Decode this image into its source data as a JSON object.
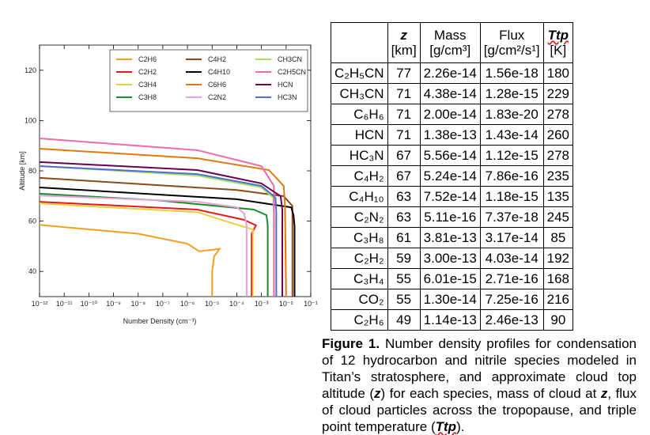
{
  "chart_data": {
    "type": "line",
    "xlabel": "Number Density (cm⁻³)",
    "ylabel": "Altitude [km]",
    "xscale": "log",
    "xlim": [
      1e-12,
      0.1
    ],
    "ylim": [
      30,
      130
    ],
    "xticks": [
      {
        "value": 1e-12,
        "label": "10⁻¹²"
      },
      {
        "value": 1e-11,
        "label": "10⁻¹¹"
      },
      {
        "value": 1e-10,
        "label": "10⁻¹⁰"
      },
      {
        "value": 1e-09,
        "label": "10⁻⁹"
      },
      {
        "value": 1e-08,
        "label": "10⁻⁸"
      },
      {
        "value": 1e-07,
        "label": "10⁻⁷"
      },
      {
        "value": 1e-06,
        "label": "10⁻⁶"
      },
      {
        "value": 1e-05,
        "label": "10⁻⁵"
      },
      {
        "value": 0.0001,
        "label": "10⁻⁴"
      },
      {
        "value": 0.001,
        "label": "10⁻³"
      },
      {
        "value": 0.01,
        "label": "10⁻²"
      },
      {
        "value": 0.1,
        "label": "10⁻¹"
      }
    ],
    "yticks": [
      40,
      60,
      80,
      100,
      120
    ],
    "legend": "top-right",
    "legend_columns": 3,
    "series": [
      {
        "name": "C2H6",
        "color": "#f0a020",
        "x": [
          1e-12,
          1e-08,
          1e-06,
          3e-06,
          2e-05,
          1.2e-05,
          1e-05,
          1e-05
        ],
        "values": [
          58.5,
          55,
          51,
          48,
          49,
          46,
          40,
          30
        ]
      },
      {
        "name": "C2H2",
        "color": "#e41a1c",
        "x": [
          1e-12,
          2.5e-06,
          0.0002,
          0.0006,
          0.0004,
          0.0004
        ],
        "values": [
          67.7,
          64.6,
          60.5,
          58.3,
          55,
          30
        ]
      },
      {
        "name": "C3H4",
        "color": "#e8d040",
        "x": [
          1e-12,
          2.5e-06,
          0.0001,
          0.00045,
          0.00045
        ],
        "values": [
          67,
          63.6,
          58.6,
          56.7,
          30
        ]
      },
      {
        "name": "C3H8",
        "color": "#1a8a2a",
        "x": [
          1e-12,
          6e-08,
          0.0005,
          0.0016,
          0.0018,
          0.0018
        ],
        "values": [
          70.9,
          68.3,
          64.6,
          62.4,
          58.3,
          30
        ]
      },
      {
        "name": "C4H2",
        "color": "#8b4a1c",
        "x": [
          1e-12,
          0.0001,
          0.008,
          0.018,
          0.018
        ],
        "values": [
          77.2,
          72.4,
          69.9,
          66,
          30
        ]
      },
      {
        "name": "C4H10",
        "color": "#000000",
        "x": [
          1e-12,
          0.0001,
          0.016,
          0.02,
          0.022,
          0.022
        ],
        "values": [
          73.4,
          68.7,
          65.5,
          62.4,
          58,
          30
        ]
      },
      {
        "name": "C6H6",
        "color": "#e07a10",
        "x": [
          1e-12,
          2.5e-06,
          0.002,
          0.008,
          0.009,
          0.01
        ],
        "values": [
          88.8,
          85,
          80.3,
          74,
          66,
          30
        ]
      },
      {
        "name": "C2N2",
        "color": "#e8a0d8",
        "x": [
          1e-12,
          2.5e-06,
          0.0001,
          0.0002,
          0.00025,
          0.00025
        ],
        "values": [
          70.2,
          67.7,
          65.5,
          63,
          58.3,
          30
        ]
      },
      {
        "name": "CH3CN",
        "color": "#a8e060",
        "x": [
          1e-12,
          2.5e-06,
          0.001,
          0.003,
          0.0032,
          0.0032
        ],
        "values": [
          81.9,
          78.1,
          73.4,
          69.3,
          63,
          30
        ]
      },
      {
        "name": "C2H5CN",
        "color": "#ee6aa8",
        "x": [
          1e-12,
          2.5e-06,
          0.001,
          0.0032,
          0.0032
        ],
        "values": [
          92.9,
          88.2,
          81.9,
          74,
          30
        ]
      },
      {
        "name": "HCN",
        "color": "#6a0050",
        "x": [
          1e-12,
          2.5e-06,
          0.001,
          0.006,
          0.007,
          0.007
        ],
        "values": [
          83.5,
          80.3,
          75,
          69.9,
          64.6,
          30
        ]
      },
      {
        "name": "HC3N",
        "color": "#5070d0",
        "x": [
          1e-12,
          2.5e-06,
          0.001,
          0.0037,
          0.004,
          0.004
        ],
        "values": [
          81.9,
          78.7,
          74,
          69.3,
          63.6,
          30
        ]
      }
    ]
  },
  "table": {
    "header": [
      {
        "name": "z",
        "unit": "[km]"
      },
      {
        "name": "Mass",
        "unit": "[g/cm³]"
      },
      {
        "name": "Flux",
        "unit": "[g/cm²/s¹]"
      },
      {
        "name": "Ttp",
        "unit": "[K]"
      }
    ],
    "rows": [
      [
        "C₂H₅CN",
        77,
        "2.26e-14",
        "1.56e-18",
        180
      ],
      [
        "CH₃CN",
        71,
        "4.38e-14",
        "1.28e-15",
        229
      ],
      [
        "C₆H₆",
        71,
        "2.00e-14",
        "1.83e-20",
        278
      ],
      [
        "HCN",
        71,
        "1.38e-13",
        "1.43e-14",
        260
      ],
      [
        "HC₃N",
        67,
        "5.56e-14",
        "1.12e-15",
        278
      ],
      [
        "C₄H₂",
        67,
        "5.24e-14",
        "7.86e-16",
        235
      ],
      [
        "C₄H₁₀",
        63,
        "7.52e-14",
        "1.18e-15",
        135
      ],
      [
        "C₂N₂",
        63,
        "5.11e-16",
        "7.37e-18",
        245
      ],
      [
        "C₃H₈",
        61,
        "3.81e-13",
        "3.17e-14",
        85
      ],
      [
        "C₂H₂",
        59,
        "3.00e-13",
        "4.03e-14",
        192
      ],
      [
        "C₃H₄",
        55,
        "6.01e-15",
        "2.71e-16",
        168
      ],
      [
        "CO₂",
        55,
        "1.30e-14",
        "7.25e-16",
        216
      ],
      [
        "C₂H₆",
        49,
        "1.14e-13",
        "2.46e-13",
        90
      ]
    ]
  },
  "caption": {
    "label": "Figure 1.",
    "segments": [
      {
        "text": " Number density profiles for condensation of 12 hydrocarbon and nitrile species modeled in Titan’s stratosphere, and approximate cloud top altitude ("
      },
      {
        "text": "z",
        "emphasis": true
      },
      {
        "text": ") for each species, mass of cloud at "
      },
      {
        "text": "z",
        "emphasis": true
      },
      {
        "text": ", flux of cloud particles across the tropopause, and triple point temperature ("
      },
      {
        "text": "Ttp",
        "emphasis": true,
        "wavy": true
      },
      {
        "text": ")."
      }
    ]
  }
}
